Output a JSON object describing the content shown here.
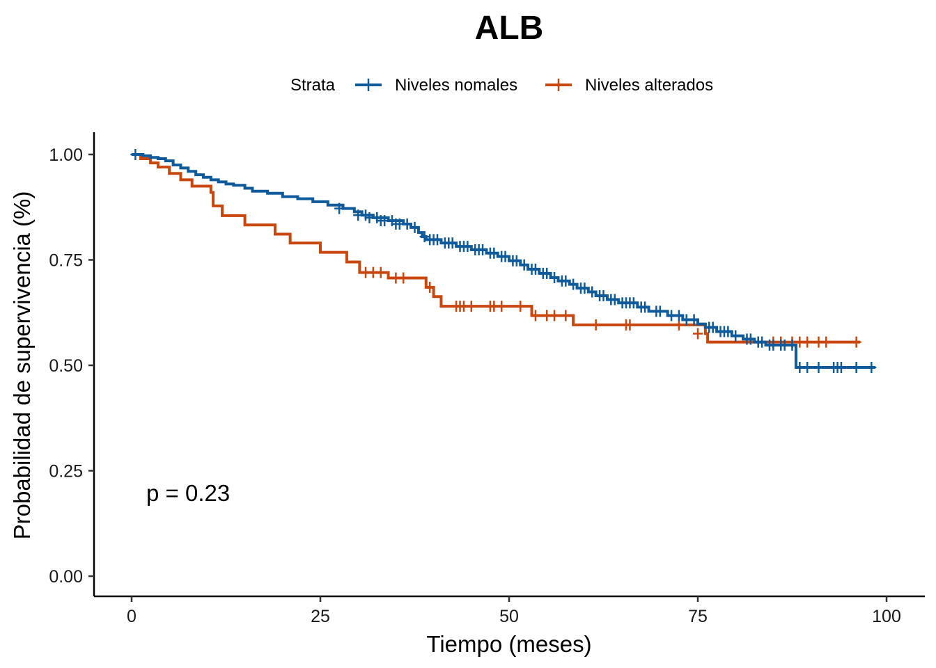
{
  "chart_data": {
    "type": "line",
    "subtype": "kaplan-meier step survival curve",
    "title": "ALB",
    "xlabel": "Tiempo (meses)",
    "ylabel": "Probabilidad de supervivencia (%)",
    "xlim": [
      0,
      100
    ],
    "ylim": [
      0,
      1
    ],
    "x_ticks": [
      0,
      25,
      50,
      75,
      100
    ],
    "x_tick_labels": [
      "0",
      "25",
      "50",
      "75",
      "100"
    ],
    "y_ticks": [
      0,
      0.25,
      0.5,
      0.75,
      1.0
    ],
    "y_tick_labels": [
      "0.00",
      "0.25",
      "0.50",
      "0.75",
      "1.00"
    ],
    "grid": false,
    "legend": {
      "position": "top",
      "title": "Strata",
      "entries": [
        "Niveles nomales",
        "Niveles alterados"
      ]
    },
    "annotation": "p = 0.23",
    "series": [
      {
        "name": "Niveles nomales",
        "color": "#0E5A9B",
        "steps": [
          [
            0,
            1.0
          ],
          [
            1.5,
            0.997
          ],
          [
            2.5,
            0.993
          ],
          [
            3.5,
            0.99
          ],
          [
            4.5,
            0.985
          ],
          [
            5.5,
            0.975
          ],
          [
            6.5,
            0.968
          ],
          [
            7.5,
            0.96
          ],
          [
            8.5,
            0.952
          ],
          [
            9.5,
            0.946
          ],
          [
            10.5,
            0.94
          ],
          [
            11.5,
            0.935
          ],
          [
            12.5,
            0.93
          ],
          [
            13.5,
            0.927
          ],
          [
            15,
            0.92
          ],
          [
            16,
            0.913
          ],
          [
            18,
            0.908
          ],
          [
            20,
            0.9
          ],
          [
            22,
            0.895
          ],
          [
            24,
            0.888
          ],
          [
            26,
            0.88
          ],
          [
            28,
            0.872
          ],
          [
            29.5,
            0.864
          ],
          [
            30.5,
            0.856
          ],
          [
            32,
            0.85
          ],
          [
            34,
            0.843
          ],
          [
            36,
            0.835
          ],
          [
            37,
            0.827
          ],
          [
            38,
            0.815
          ],
          [
            38.5,
            0.805
          ],
          [
            39,
            0.798
          ],
          [
            41,
            0.79
          ],
          [
            43,
            0.782
          ],
          [
            45,
            0.774
          ],
          [
            47,
            0.766
          ],
          [
            48.5,
            0.758
          ],
          [
            50,
            0.748
          ],
          [
            51.5,
            0.738
          ],
          [
            52.5,
            0.728
          ],
          [
            54,
            0.718
          ],
          [
            55.5,
            0.708
          ],
          [
            56.5,
            0.7
          ],
          [
            58,
            0.692
          ],
          [
            59,
            0.683
          ],
          [
            60.5,
            0.674
          ],
          [
            61.5,
            0.665
          ],
          [
            63,
            0.656
          ],
          [
            64.5,
            0.648
          ],
          [
            67,
            0.638
          ],
          [
            68.5,
            0.628
          ],
          [
            71,
            0.618
          ],
          [
            73,
            0.608
          ],
          [
            75,
            0.598
          ],
          [
            76,
            0.59
          ],
          [
            77.5,
            0.58
          ],
          [
            79.5,
            0.57
          ],
          [
            81,
            0.562
          ],
          [
            82.5,
            0.555
          ],
          [
            84,
            0.548
          ],
          [
            88,
            0.495
          ],
          [
            98.5,
            0.495
          ]
        ],
        "censored": [
          [
            0.5,
            1.0
          ],
          [
            27.5,
            0.872
          ],
          [
            30,
            0.856
          ],
          [
            31,
            0.856
          ],
          [
            31.5,
            0.85
          ],
          [
            32.5,
            0.85
          ],
          [
            33,
            0.843
          ],
          [
            33.5,
            0.843
          ],
          [
            34.5,
            0.843
          ],
          [
            35,
            0.835
          ],
          [
            35.5,
            0.835
          ],
          [
            36.5,
            0.835
          ],
          [
            37.5,
            0.827
          ],
          [
            38.8,
            0.805
          ],
          [
            39.5,
            0.798
          ],
          [
            40,
            0.798
          ],
          [
            40.5,
            0.798
          ],
          [
            41.5,
            0.79
          ],
          [
            42,
            0.79
          ],
          [
            42.5,
            0.79
          ],
          [
            43.5,
            0.782
          ],
          [
            44,
            0.782
          ],
          [
            44.5,
            0.782
          ],
          [
            45.5,
            0.774
          ],
          [
            46,
            0.774
          ],
          [
            46.5,
            0.774
          ],
          [
            47.5,
            0.766
          ],
          [
            48,
            0.766
          ],
          [
            49,
            0.758
          ],
          [
            49.5,
            0.758
          ],
          [
            50.5,
            0.748
          ],
          [
            51,
            0.748
          ],
          [
            52,
            0.738
          ],
          [
            53,
            0.728
          ],
          [
            53.5,
            0.728
          ],
          [
            54.5,
            0.718
          ],
          [
            55,
            0.718
          ],
          [
            56,
            0.708
          ],
          [
            57,
            0.7
          ],
          [
            57.5,
            0.7
          ],
          [
            58.5,
            0.692
          ],
          [
            59.5,
            0.683
          ],
          [
            60,
            0.683
          ],
          [
            61,
            0.674
          ],
          [
            62,
            0.665
          ],
          [
            62.5,
            0.665
          ],
          [
            63.5,
            0.656
          ],
          [
            64,
            0.656
          ],
          [
            65,
            0.648
          ],
          [
            65.5,
            0.648
          ],
          [
            66,
            0.648
          ],
          [
            66.5,
            0.648
          ],
          [
            67.5,
            0.638
          ],
          [
            68,
            0.638
          ],
          [
            69.5,
            0.628
          ],
          [
            70,
            0.628
          ],
          [
            71.5,
            0.618
          ],
          [
            72.5,
            0.618
          ],
          [
            73.5,
            0.608
          ],
          [
            74.5,
            0.608
          ],
          [
            76.5,
            0.59
          ],
          [
            77,
            0.59
          ],
          [
            78,
            0.58
          ],
          [
            78.5,
            0.58
          ],
          [
            79,
            0.58
          ],
          [
            80,
            0.57
          ],
          [
            81.5,
            0.562
          ],
          [
            82,
            0.562
          ],
          [
            83,
            0.555
          ],
          [
            83.5,
            0.555
          ],
          [
            84.5,
            0.548
          ],
          [
            85,
            0.548
          ],
          [
            86,
            0.548
          ],
          [
            86.5,
            0.548
          ],
          [
            87.5,
            0.548
          ],
          [
            88.5,
            0.495
          ],
          [
            89.5,
            0.495
          ],
          [
            91,
            0.495
          ],
          [
            93,
            0.495
          ],
          [
            93.5,
            0.495
          ],
          [
            94,
            0.495
          ],
          [
            96,
            0.495
          ],
          [
            98,
            0.495
          ]
        ]
      },
      {
        "name": "Niveles alterados",
        "color": "#C8470E",
        "steps": [
          [
            0,
            1.0
          ],
          [
            1.2,
            0.99
          ],
          [
            2.5,
            0.98
          ],
          [
            3.5,
            0.97
          ],
          [
            5,
            0.955
          ],
          [
            6.5,
            0.94
          ],
          [
            8,
            0.925
          ],
          [
            10.5,
            0.91
          ],
          [
            10.8,
            0.878
          ],
          [
            12,
            0.855
          ],
          [
            15,
            0.833
          ],
          [
            19,
            0.811
          ],
          [
            21,
            0.79
          ],
          [
            25,
            0.768
          ],
          [
            28.5,
            0.745
          ],
          [
            30.2,
            0.72
          ],
          [
            34,
            0.707
          ],
          [
            39,
            0.685
          ],
          [
            40,
            0.663
          ],
          [
            41,
            0.64
          ],
          [
            53,
            0.618
          ],
          [
            58.5,
            0.596
          ],
          [
            76,
            0.575
          ],
          [
            76.3,
            0.555
          ],
          [
            96.5,
            0.555
          ]
        ],
        "censored": [
          [
            31,
            0.72
          ],
          [
            32,
            0.72
          ],
          [
            33,
            0.72
          ],
          [
            35,
            0.707
          ],
          [
            36,
            0.707
          ],
          [
            39.5,
            0.685
          ],
          [
            43,
            0.64
          ],
          [
            43.5,
            0.64
          ],
          [
            44,
            0.64
          ],
          [
            45,
            0.64
          ],
          [
            47.5,
            0.64
          ],
          [
            48,
            0.64
          ],
          [
            49,
            0.64
          ],
          [
            51.5,
            0.64
          ],
          [
            53.5,
            0.618
          ],
          [
            55,
            0.618
          ],
          [
            56,
            0.618
          ],
          [
            57.5,
            0.618
          ],
          [
            61.5,
            0.596
          ],
          [
            65.5,
            0.596
          ],
          [
            66,
            0.596
          ],
          [
            72.5,
            0.596
          ],
          [
            75,
            0.575
          ],
          [
            83,
            0.555
          ],
          [
            85,
            0.555
          ],
          [
            86,
            0.555
          ],
          [
            87.5,
            0.555
          ],
          [
            88.5,
            0.555
          ],
          [
            89.5,
            0.555
          ],
          [
            91,
            0.555
          ],
          [
            92,
            0.555
          ],
          [
            96,
            0.555
          ]
        ]
      }
    ]
  }
}
